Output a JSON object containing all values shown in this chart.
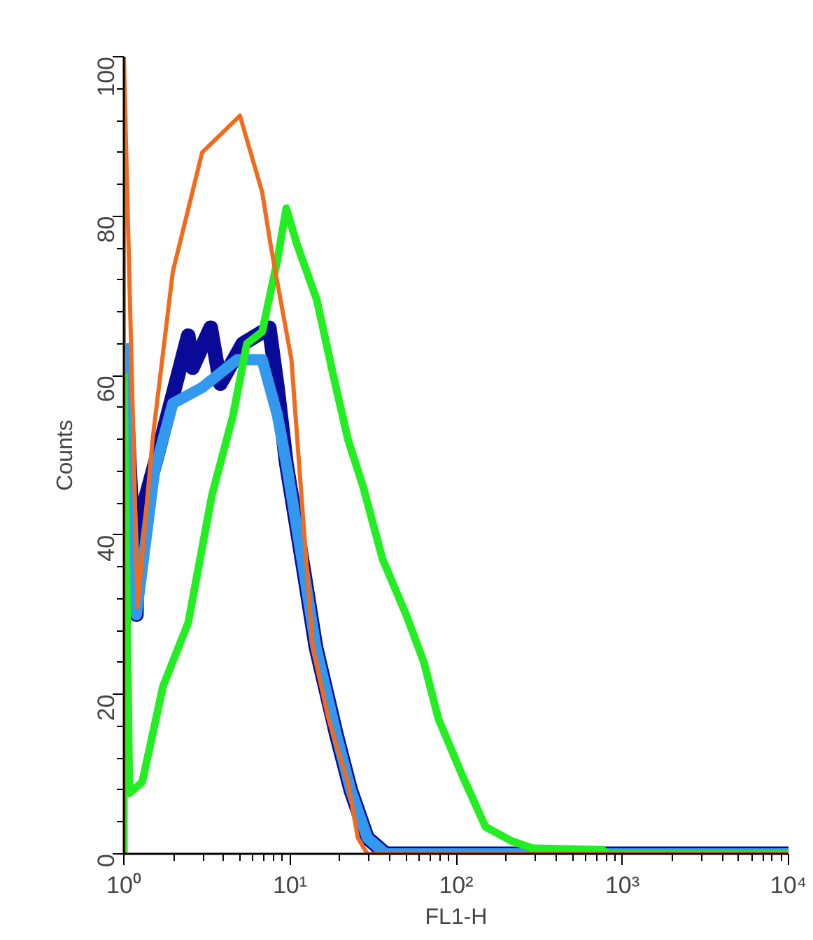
{
  "chart_data": {
    "type": "line",
    "xlabel": "FL1-H",
    "ylabel": "Counts",
    "log": "x",
    "xlim": [
      1,
      10000
    ],
    "ylim": [
      0,
      100
    ],
    "xticks": [
      {
        "value": 1,
        "label": "10⁰"
      },
      {
        "value": 10,
        "label": "10¹"
      },
      {
        "value": 100,
        "label": "10²"
      },
      {
        "value": 1000,
        "label": "10³"
      },
      {
        "value": 10000,
        "label": "10⁴"
      }
    ],
    "yticks": [
      0,
      20,
      40,
      60,
      80,
      100
    ],
    "grid": false,
    "marker": "none",
    "line_style": "solid",
    "series": [
      {
        "color": "#0a0a99",
        "x": [
          1,
          1.19,
          1.21,
          1.59,
          2.44,
          2.59,
          3.33,
          3.81,
          5.2,
          7.5,
          8.4,
          9.5,
          12.0,
          14.3,
          19.0,
          23.2,
          29.2,
          37.7,
          10000
        ],
        "values": [
          64,
          30,
          41,
          50,
          65,
          61,
          66,
          59,
          64,
          66,
          58.5,
          49,
          36,
          26,
          15,
          8,
          2,
          0,
          0
        ]
      },
      {
        "color": "#3399ee",
        "x": [
          1,
          1.19,
          1.53,
          1.97,
          2.96,
          4.81,
          6.8,
          8.4,
          9.5,
          12.0,
          14.3,
          19.0,
          23.2,
          29.2,
          37.7,
          10000
        ],
        "values": [
          64,
          30,
          48,
          56.5,
          58.5,
          62,
          62,
          55,
          49,
          36,
          26,
          15,
          8,
          2,
          0,
          0
        ]
      },
      {
        "color": "#22ee22",
        "x": [
          1,
          1,
          1.08,
          1.29,
          1.72,
          2.44,
          3.39,
          4.54,
          5.5,
          6.8,
          8.4,
          9.5,
          11.0,
          14.5,
          18.0,
          22.3,
          27.6,
          36,
          50,
          64,
          78,
          108,
          150,
          216,
          288,
          760,
          805,
          10000
        ],
        "values": [
          0,
          60,
          7.6,
          9,
          21,
          29,
          45,
          55,
          64,
          65.5,
          74.5,
          81,
          76.5,
          69.5,
          60.5,
          52,
          46,
          37,
          30,
          24,
          17,
          10,
          3.4,
          1.6,
          0.7,
          0.5,
          0,
          0
        ]
      },
      {
        "color": "#f26b1d",
        "x": [
          1,
          1,
          1.21,
          1.49,
          1.97,
          2.96,
          5.0,
          6.8,
          7.7,
          10.2,
          12.0,
          13.7,
          17.0,
          22.3,
          25.6,
          29.2,
          44,
          10000
        ],
        "values": [
          0,
          100,
          31,
          52,
          73,
          88,
          92.6,
          83,
          76,
          62,
          42,
          26,
          17,
          9,
          2,
          0,
          0,
          0
        ]
      }
    ]
  }
}
